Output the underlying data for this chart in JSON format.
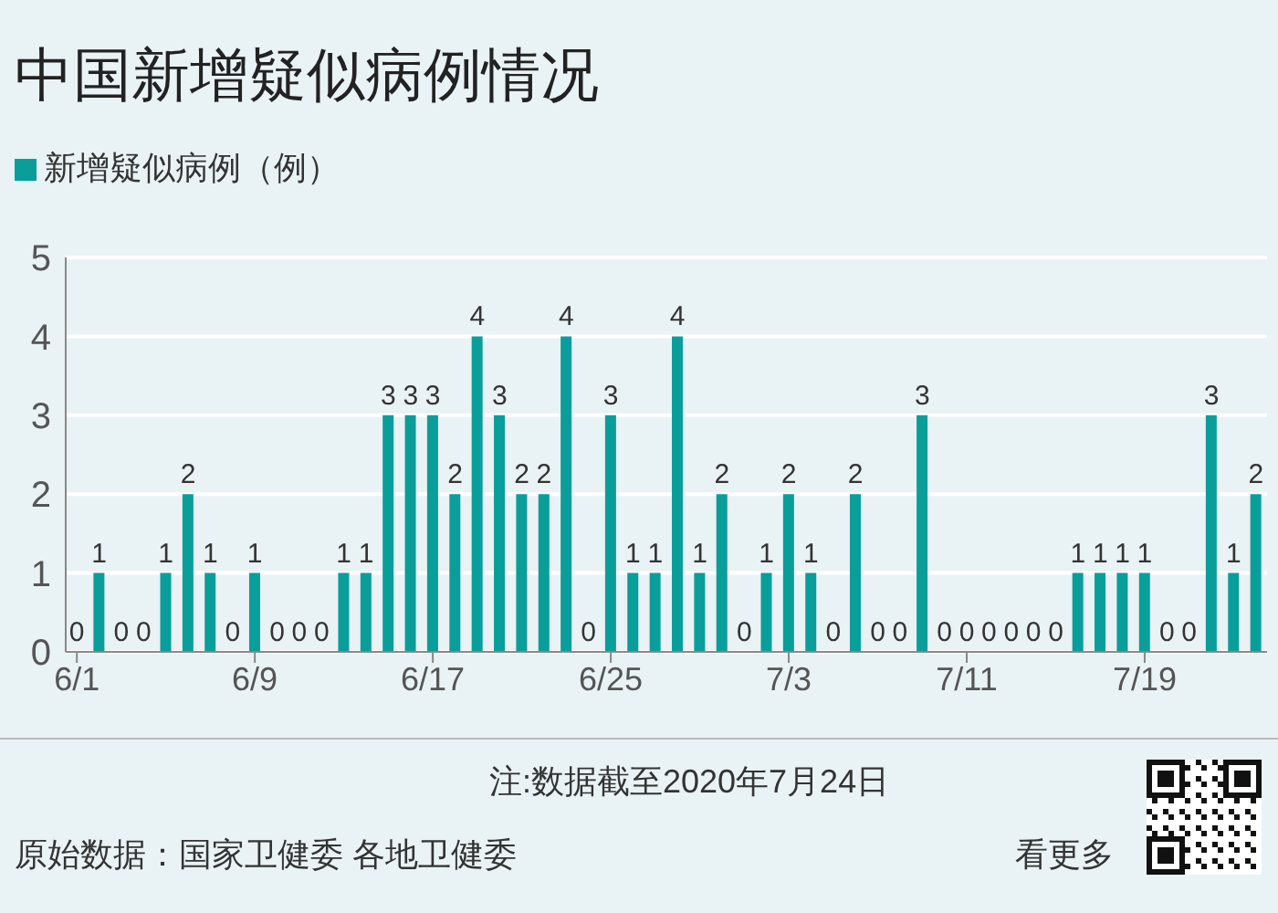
{
  "chart_data": {
    "type": "bar",
    "title": "中国新增疑似病例情况",
    "x": [
      "2020-06-01",
      "2020-06-02",
      "2020-06-03",
      "2020-06-04",
      "2020-06-05",
      "2020-06-06",
      "2020-06-07",
      "2020-06-08",
      "2020-06-09",
      "2020-06-10",
      "2020-06-11",
      "2020-06-12",
      "2020-06-13",
      "2020-06-14",
      "2020-06-15",
      "2020-06-16",
      "2020-06-17",
      "2020-06-18",
      "2020-06-19",
      "2020-06-20",
      "2020-06-21",
      "2020-06-22",
      "2020-06-23",
      "2020-06-24",
      "2020-06-25",
      "2020-06-26",
      "2020-06-27",
      "2020-06-28",
      "2020-06-29",
      "2020-06-30",
      "2020-07-01",
      "2020-07-02",
      "2020-07-03",
      "2020-07-04",
      "2020-07-05",
      "2020-07-06",
      "2020-07-07",
      "2020-07-08",
      "2020-07-09",
      "2020-07-10",
      "2020-07-11",
      "2020-07-12",
      "2020-07-13",
      "2020-07-14",
      "2020-07-15",
      "2020-07-16",
      "2020-07-17",
      "2020-07-18",
      "2020-07-19",
      "2020-07-20",
      "2020-07-21",
      "2020-07-22",
      "2020-07-23",
      "2020-07-24"
    ],
    "series": [
      {
        "name": "新增疑似病例（例）",
        "color": "#0a9e9a",
        "values": [
          0,
          1,
          0,
          0,
          1,
          2,
          1,
          0,
          1,
          0,
          0,
          0,
          1,
          1,
          3,
          3,
          3,
          2,
          4,
          3,
          2,
          2,
          4,
          0,
          3,
          1,
          1,
          4,
          1,
          2,
          0,
          1,
          2,
          1,
          0,
          2,
          0,
          0,
          3,
          0,
          0,
          0,
          0,
          0,
          0,
          1,
          1,
          1,
          1,
          0,
          0,
          3,
          1,
          2
        ]
      }
    ],
    "xlim": [
      "2020-05-31T12:00",
      "2020-07-24T12:00"
    ],
    "xticks": [
      {
        "value": "2020-06-01",
        "label": "6/1"
      },
      {
        "value": "2020-06-09",
        "label": "6/9"
      },
      {
        "value": "2020-06-17",
        "label": "6/17"
      },
      {
        "value": "2020-06-25",
        "label": "6/25"
      },
      {
        "value": "2020-07-03",
        "label": "7/3"
      },
      {
        "value": "2020-07-11",
        "label": "7/11"
      },
      {
        "value": "2020-07-19",
        "label": "7/19"
      }
    ],
    "ylim": [
      0,
      5
    ],
    "yticks": [
      0,
      1,
      2,
      3,
      4,
      5
    ],
    "grid": "y",
    "legend": "top left",
    "data_labels": true,
    "annotations": [
      "注:数据截至2020年7月24日",
      "原始数据：国家卫健委 各地卫健委",
      "看更多"
    ]
  }
}
